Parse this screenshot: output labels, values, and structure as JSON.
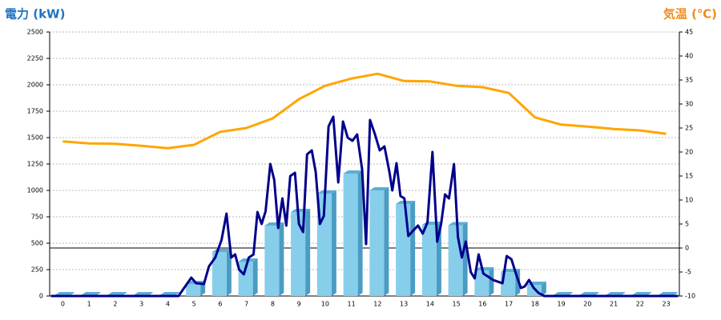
{
  "chart_data": {
    "type": "bar-line",
    "title_left": "電力 (kW)",
    "title_right": "気温 (℃)",
    "categories": [
      "0",
      "1",
      "2",
      "3",
      "4",
      "5",
      "6",
      "7",
      "8",
      "9",
      "10",
      "11",
      "12",
      "13",
      "14",
      "15",
      "16",
      "17",
      "18",
      "19",
      "20",
      "21",
      "22",
      "23"
    ],
    "ylim": [
      0,
      2500
    ],
    "yticks": [
      0,
      250,
      500,
      750,
      1000,
      1250,
      1500,
      1750,
      2000,
      2250,
      2500
    ],
    "y2lim": [
      -10,
      45
    ],
    "y2ticks": [
      -10,
      -5,
      0,
      5,
      10,
      15,
      20,
      25,
      30,
      35,
      40,
      45
    ],
    "grid": true,
    "series": [
      {
        "type": "bar",
        "color": "#87ceeb",
        "values": [
          0,
          0,
          0,
          0,
          0,
          114,
          417,
          326,
          667,
          795,
          970,
          1159,
          1000,
          871,
          674,
          670,
          242,
          227,
          106,
          0,
          0,
          0,
          0,
          0
        ]
      },
      {
        "type": "line",
        "color": "#00008b",
        "x": [
          -0.45,
          4.41,
          4.9,
          5.08,
          5.38,
          5.57,
          5.81,
          6.05,
          6.24,
          6.42,
          6.57,
          6.72,
          6.9,
          7.09,
          7.27,
          7.42,
          7.58,
          7.73,
          7.91,
          8.06,
          8.21,
          8.37,
          8.52,
          8.67,
          8.85,
          9.0,
          9.16,
          9.31,
          9.49,
          9.64,
          9.8,
          9.95,
          10.13,
          10.31,
          10.5,
          10.68,
          10.86,
          11.04,
          11.22,
          11.41,
          11.56,
          11.71,
          11.9,
          12.08,
          12.26,
          12.45,
          12.56,
          12.72,
          12.87,
          13.02,
          13.17,
          13.36,
          13.54,
          13.72,
          13.9,
          14.09,
          14.27,
          14.42,
          14.57,
          14.72,
          14.91,
          15.06,
          15.21,
          15.36,
          15.55,
          15.7,
          15.85,
          16.03,
          16.22,
          16.4,
          16.58,
          16.76,
          16.92,
          17.1,
          17.28,
          17.46,
          17.61,
          17.77,
          17.95,
          18.13,
          18.35,
          23.45
        ],
        "values": [
          0,
          0,
          174,
          121,
          114,
          280,
          364,
          530,
          780,
          364,
          394,
          250,
          205,
          364,
          394,
          795,
          682,
          803,
          1250,
          1098,
          644,
          924,
          667,
          1136,
          1167,
          682,
          606,
          1341,
          1379,
          1174,
          682,
          758,
          1606,
          1697,
          1076,
          1652,
          1500,
          1470,
          1530,
          1197,
          492,
          1667,
          1530,
          1379,
          1417,
          1174,
          1000,
          1258,
          947,
          924,
          568,
          621,
          667,
          591,
          697,
          1364,
          515,
          682,
          962,
          924,
          1250,
          561,
          364,
          515,
          227,
          167,
          394,
          212,
          182,
          152,
          136,
          121,
          379,
          348,
          205,
          76,
          91,
          152,
          76,
          30,
          0,
          0
        ]
      },
      {
        "type": "line",
        "axis": "y2",
        "color": "#ffa500",
        "values": [
          22.2,
          21.8,
          21.7,
          21.3,
          20.8,
          21.5,
          24.2,
          25,
          27,
          31,
          33.8,
          35.3,
          36.3,
          34.8,
          34.7,
          33.8,
          33.5,
          32.3,
          27.2,
          25.7,
          25.3,
          24.8,
          24.5,
          23.8
        ]
      }
    ]
  }
}
